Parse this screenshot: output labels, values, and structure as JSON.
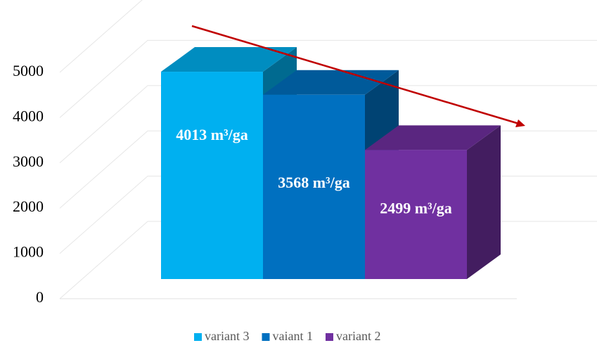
{
  "chart_data": {
    "type": "bar3d",
    "categories": [
      ""
    ],
    "series": [
      {
        "name": "variant 3",
        "color": "#00b0f0",
        "values": [
          4013
        ],
        "value_labels": [
          "4013 m³/ga"
        ]
      },
      {
        "name": "vaiant 1",
        "color": "#0070c0",
        "values": [
          3568
        ],
        "value_labels": [
          "3568 m³/ga"
        ]
      },
      {
        "name": "variant 2",
        "color": "#7030a0",
        "values": [
          2499
        ],
        "value_labels": [
          "2499 m³/ga"
        ]
      }
    ],
    "ylim": [
      0,
      5000
    ],
    "yticks": [
      0,
      1000,
      2000,
      3000,
      4000,
      5000
    ],
    "grid": true,
    "legend": "bottom",
    "trend_arrow_color": "#c00000"
  }
}
